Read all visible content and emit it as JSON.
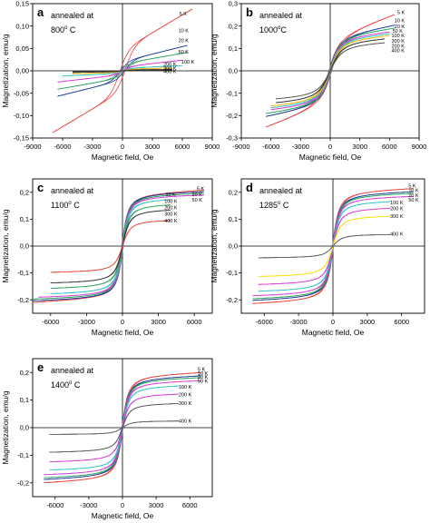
{
  "chart_data": [
    {
      "type": "line",
      "panel_label": "a",
      "annotation": [
        "annealed at",
        "800",
        "o",
        " C"
      ],
      "xlabel": "Magnetic field, Oe",
      "ylabel": "Magnetization, emu/g",
      "xlim": [
        -9000,
        9000
      ],
      "ylim": [
        -0.15,
        0.15
      ],
      "xticks": [
        -9000,
        -6000,
        -3000,
        0,
        3000,
        6000,
        9000
      ],
      "xtick_labels": [
        "-9000",
        "-6000",
        "-3000",
        "0",
        "3000",
        "6000",
        "9000"
      ],
      "yticks": [
        -0.15,
        -0.1,
        -0.05,
        0.0,
        0.05,
        0.1,
        0.15
      ],
      "ytick_labels": [
        "-0,15",
        "-0,10",
        "-0,05",
        "0,00",
        "0,05",
        "0,10",
        "0,15"
      ],
      "x_range": [
        -7000,
        7000
      ],
      "curve_model": "linear",
      "series": [
        {
          "name": "5 K",
          "ms": 0.13,
          "hc": 300,
          "slope": 1.32e-05,
          "xmin": -7000,
          "xmax": 7000,
          "color": "#e8413c"
        },
        {
          "name": "10 K",
          "ms": 0.06,
          "hc": 250,
          "slope": 5.5e-06,
          "xmin": -6500,
          "xmax": 6500,
          "color": "#1f3a93"
        },
        {
          "name": "20 K",
          "ms": 0.045,
          "hc": 200,
          "slope": 3.9e-06,
          "xmin": -6500,
          "xmax": 6500,
          "color": "#2ca25f"
        },
        {
          "name": "50 K",
          "ms": 0.025,
          "hc": 150,
          "slope": 2.5e-06,
          "xmin": -6500,
          "xmax": 6000,
          "color": "#d53ad5"
        },
        {
          "name": "100 K",
          "ms": 0.016,
          "hc": 100,
          "slope": 1e-06,
          "xmin": -6000,
          "xmax": 6000,
          "color": "#2ec4c4"
        },
        {
          "name": "200 K",
          "ms": 0.01,
          "hc": 60,
          "slope": 6e-07,
          "xmin": -5000,
          "xmax": 5000,
          "color": "#f5b800"
        },
        {
          "name": "300 K",
          "ms": 0.006,
          "hc": 40,
          "slope": 3e-07,
          "xmin": -5000,
          "xmax": 5000,
          "color": "#444444"
        },
        {
          "name": "400 K",
          "ms": 0.003,
          "hc": 20,
          "slope": 1e-07,
          "xmin": -5000,
          "xmax": 5000,
          "color": "#333333"
        }
      ],
      "legend_labels": [
        {
          "text": "5 K",
          "x": 5700,
          "y": 0.128
        },
        {
          "text": "10 K",
          "x": 5600,
          "y": 0.09
        },
        {
          "text": "20 K",
          "x": 5600,
          "y": 0.068
        },
        {
          "text": "50 K",
          "x": 5600,
          "y": 0.043
        },
        {
          "text": "100 K",
          "x": 5900,
          "y": 0.02
        },
        {
          "text": "200 K",
          "x": 4100,
          "y": 0.015
        },
        {
          "text": "300 K",
          "x": 4100,
          "y": 0.006
        },
        {
          "text": "400 K",
          "x": 4100,
          "y": -0.001
        }
      ]
    },
    {
      "type": "line",
      "panel_label": "b",
      "annotation": [
        "annealed at",
        "1000",
        "o",
        "C"
      ],
      "xlabel": "Magnetic field, Oe",
      "ylabel": "Magnetization, emu/g",
      "xlim": [
        -9000,
        9000
      ],
      "ylim": [
        -0.3,
        0.3
      ],
      "xticks": [
        -9000,
        -6000,
        -3000,
        0,
        3000,
        6000,
        9000
      ],
      "xtick_labels": [
        "-9000",
        "-6000",
        "-3000",
        "0",
        "3000",
        "6000",
        "9000"
      ],
      "yticks": [
        -0.3,
        -0.2,
        -0.1,
        0.0,
        0.1,
        0.2,
        0.3
      ],
      "ytick_labels": [
        "-0,3",
        "-0,2",
        "-0,1",
        "0,0",
        "0,1",
        "0,2",
        "0,3"
      ],
      "curve_model": "langevin",
      "series": [
        {
          "name": "5 K",
          "ms": 0.16,
          "a": 400,
          "hc": 150,
          "slope": 1.55e-05,
          "xmin": -6500,
          "xmax": 6500,
          "color": "#e8413c"
        },
        {
          "name": "10 K",
          "ms": 0.165,
          "a": 400,
          "hc": 130,
          "slope": 7.5e-06,
          "xmin": -6500,
          "xmax": 6500,
          "color": "#1f3a93"
        },
        {
          "name": "20 K",
          "ms": 0.165,
          "a": 400,
          "hc": 110,
          "slope": 5.5e-06,
          "xmin": -6500,
          "xmax": 6500,
          "color": "#2ca25f"
        },
        {
          "name": "50 K",
          "ms": 0.16,
          "a": 400,
          "hc": 90,
          "slope": 4e-06,
          "xmin": -6000,
          "xmax": 6000,
          "color": "#d53ad5"
        },
        {
          "name": "100 K",
          "ms": 0.155,
          "a": 420,
          "hc": 70,
          "slope": 3.5e-06,
          "xmin": -6000,
          "xmax": 6000,
          "color": "#2ec4c4"
        },
        {
          "name": "200 K",
          "ms": 0.15,
          "a": 440,
          "hc": 50,
          "slope": 3e-06,
          "xmin": -6000,
          "xmax": 6000,
          "color": "#f5b800"
        },
        {
          "name": "300 K",
          "ms": 0.14,
          "a": 460,
          "hc": 30,
          "slope": 2.5e-06,
          "xmin": -5500,
          "xmax": 5500,
          "color": "#333333"
        },
        {
          "name": "400 K",
          "ms": 0.125,
          "a": 480,
          "hc": 20,
          "slope": 2e-06,
          "xmin": -5500,
          "xmax": 5500,
          "color": "#555555"
        }
      ],
      "legend_labels": [
        {
          "text": "5 K",
          "x": 6800,
          "y": 0.262
        },
        {
          "text": "10 K",
          "x": 6500,
          "y": 0.224
        },
        {
          "text": "20 K",
          "x": 6500,
          "y": 0.198
        },
        {
          "text": "50 K",
          "x": 6300,
          "y": 0.178
        },
        {
          "text": "100 K",
          "x": 6200,
          "y": 0.158
        },
        {
          "text": "300 K",
          "x": 6200,
          "y": 0.134
        },
        {
          "text": "200 K",
          "x": 6200,
          "y": 0.112
        },
        {
          "text": "400 K",
          "x": 6200,
          "y": 0.092
        }
      ]
    },
    {
      "type": "line",
      "panel_label": "c",
      "annotation": [
        "annealed at",
        "1100",
        "o",
        " C"
      ],
      "xlabel": "Magnetic field, Oe",
      "ylabel": "Magnetization, emu/g",
      "xlim": [
        -7500,
        7500
      ],
      "ylim": [
        -0.25,
        0.25
      ],
      "xticks": [
        -6000,
        -3000,
        0,
        3000,
        6000
      ],
      "xtick_labels": [
        "-6000",
        "-3000",
        "0",
        "3000",
        "6000"
      ],
      "yticks": [
        -0.2,
        -0.1,
        0.0,
        0.1,
        0.2
      ],
      "ytick_labels": [
        "-0,2",
        "-0,1",
        "0,0",
        "0,1",
        "0,2"
      ],
      "curve_model": "langevin",
      "series": [
        {
          "name": "5 K",
          "ms": 0.2,
          "a": 200,
          "hc": 60,
          "slope": 2e-06,
          "xmin": -7500,
          "xmax": 6800,
          "color": "#e8413c"
        },
        {
          "name": "10 K",
          "ms": 0.2,
          "a": 200,
          "hc": 55,
          "slope": 1.2e-06,
          "xmin": -7500,
          "xmax": 6800,
          "color": "#1f3a93"
        },
        {
          "name": "20 K",
          "ms": 0.195,
          "a": 200,
          "hc": 50,
          "slope": 1e-06,
          "xmin": -7500,
          "xmax": 6800,
          "color": "#2ca25f"
        },
        {
          "name": "50 K",
          "ms": 0.19,
          "a": 200,
          "hc": 45,
          "slope": 8e-07,
          "xmin": -7000,
          "xmax": 6800,
          "color": "#d53ad5"
        },
        {
          "name": "100 K",
          "ms": 0.18,
          "a": 210,
          "hc": 40,
          "slope": 6e-07,
          "xmin": -6000,
          "xmax": 4000,
          "color": "#2ec4c4"
        },
        {
          "name": "200 K",
          "ms": 0.16,
          "a": 220,
          "hc": 30,
          "slope": 5e-07,
          "xmin": -6000,
          "xmax": 4000,
          "color": "#2ca25f"
        },
        {
          "name": "300 K",
          "ms": 0.14,
          "a": 230,
          "hc": 20,
          "slope": 4e-07,
          "xmin": -6000,
          "xmax": 4000,
          "color": "#333333"
        },
        {
          "name": "400 K",
          "ms": 0.1,
          "a": 250,
          "hc": 10,
          "slope": 3e-07,
          "xmin": -6000,
          "xmax": 4000,
          "color": "#e8413c"
        }
      ],
      "legend_labels": [
        {
          "text": "5 K",
          "x": 6200,
          "y": 0.215
        },
        {
          "text": "10 K",
          "x": 3600,
          "y": 0.192
        },
        {
          "text": "20 K",
          "x": 5800,
          "y": 0.193
        },
        {
          "text": "100 K",
          "x": 3500,
          "y": 0.168
        },
        {
          "text": "50 K",
          "x": 5800,
          "y": 0.172
        },
        {
          "text": "200 K",
          "x": 3500,
          "y": 0.144
        },
        {
          "text": "300 K",
          "x": 3500,
          "y": 0.12
        },
        {
          "text": "400 K",
          "x": 3500,
          "y": 0.095
        }
      ]
    },
    {
      "type": "line",
      "panel_label": "d",
      "annotation": [
        "annealed at",
        "1285",
        "o",
        " C"
      ],
      "xlabel": "Magnetic field, Oe",
      "ylabel": "Magnetization, emu/g",
      "xlim": [
        -8000,
        8000
      ],
      "ylim": [
        -0.25,
        0.25
      ],
      "xticks": [
        -6000,
        -3000,
        0,
        3000,
        6000
      ],
      "xtick_labels": [
        "-6000",
        "-3000",
        "0",
        "3000",
        "6000"
      ],
      "yticks": [
        -0.2,
        -0.1,
        0.0,
        0.1,
        0.2
      ],
      "ytick_labels": [
        "-0,2",
        "-0,1",
        "0,0",
        "0,1",
        "0,2"
      ],
      "curve_model": "langevin",
      "series": [
        {
          "name": "5 K",
          "ms": 0.21,
          "a": 220,
          "hc": 50,
          "slope": 1.5e-06,
          "xmin": -7000,
          "xmax": 7000,
          "color": "#e8413c"
        },
        {
          "name": "10 K",
          "ms": 0.2,
          "a": 220,
          "hc": 45,
          "slope": 1.2e-06,
          "xmin": -7000,
          "xmax": 7000,
          "color": "#1f3a93"
        },
        {
          "name": "20 K",
          "ms": 0.195,
          "a": 220,
          "hc": 40,
          "slope": 1e-06,
          "xmin": -7000,
          "xmax": 7000,
          "color": "#2ca25f"
        },
        {
          "name": "50 K",
          "ms": 0.185,
          "a": 220,
          "hc": 35,
          "slope": 8e-07,
          "xmin": -7000,
          "xmax": 7000,
          "color": "#d53ad5"
        },
        {
          "name": "100 K",
          "ms": 0.17,
          "a": 230,
          "hc": 30,
          "slope": 6e-07,
          "xmin": -6500,
          "xmax": 5000,
          "color": "#2ec4c4"
        },
        {
          "name": "200 K",
          "ms": 0.145,
          "a": 240,
          "hc": 20,
          "slope": 5e-07,
          "xmin": -6500,
          "xmax": 5000,
          "color": "#d53ad5"
        },
        {
          "name": "300 K",
          "ms": 0.115,
          "a": 260,
          "hc": 15,
          "slope": 4e-07,
          "xmin": -6500,
          "xmax": 5000,
          "color": "#f5e000"
        },
        {
          "name": "400 K",
          "ms": 0.045,
          "a": 300,
          "hc": 5,
          "slope": 1e-07,
          "xmin": -6500,
          "xmax": 5000,
          "color": "#555555"
        }
      ],
      "legend_labels": [
        {
          "text": "5 K",
          "x": 6600,
          "y": 0.225
        },
        {
          "text": "10 K",
          "x": 6600,
          "y": 0.208
        },
        {
          "text": "20 K",
          "x": 6600,
          "y": 0.19
        },
        {
          "text": "50 K",
          "x": 6600,
          "y": 0.172
        },
        {
          "text": "100 K",
          "x": 5000,
          "y": 0.163
        },
        {
          "text": "200 K",
          "x": 5000,
          "y": 0.14
        },
        {
          "text": "300 K",
          "x": 5000,
          "y": 0.112
        },
        {
          "text": "400 K",
          "x": 5000,
          "y": 0.045
        }
      ]
    },
    {
      "type": "line",
      "panel_label": "e",
      "annotation": [
        "annealed at",
        "1400",
        "o",
        " C"
      ],
      "xlabel": "Magnetic field, Oe",
      "ylabel": "Magnetization, emu/g",
      "xlim": [
        -8000,
        8000
      ],
      "ylim": [
        -0.25,
        0.25
      ],
      "xticks": [
        -6000,
        -3000,
        0,
        3000,
        6000
      ],
      "xtick_labels": [
        "-6000",
        "-3000",
        "0",
        "3000",
        "6000"
      ],
      "yticks": [
        -0.2,
        -0.1,
        0.0,
        0.1,
        0.2
      ],
      "ytick_labels": [
        "-0,2",
        "-0,1",
        "0,0",
        "0,1",
        "0,2"
      ],
      "curve_model": "langevin",
      "series": [
        {
          "name": "5 K",
          "ms": 0.195,
          "a": 220,
          "hc": 50,
          "slope": 1.5e-06,
          "xmin": -7000,
          "xmax": 7000,
          "color": "#e8413c"
        },
        {
          "name": "10 K",
          "ms": 0.185,
          "a": 220,
          "hc": 45,
          "slope": 1.2e-06,
          "xmin": -7000,
          "xmax": 7000,
          "color": "#1f3a93"
        },
        {
          "name": "20 K",
          "ms": 0.18,
          "a": 220,
          "hc": 40,
          "slope": 1e-06,
          "xmin": -7000,
          "xmax": 7000,
          "color": "#2ca25f"
        },
        {
          "name": "50 K",
          "ms": 0.17,
          "a": 220,
          "hc": 35,
          "slope": 8e-07,
          "xmin": -7000,
          "xmax": 7000,
          "color": "#d53ad5"
        },
        {
          "name": "100 K",
          "ms": 0.155,
          "a": 230,
          "hc": 30,
          "slope": 6e-07,
          "xmin": -6500,
          "xmax": 5000,
          "color": "#2ec4c4"
        },
        {
          "name": "200 K",
          "ms": 0.125,
          "a": 240,
          "hc": 20,
          "slope": 5e-07,
          "xmin": -6500,
          "xmax": 5000,
          "color": "#d53ad5"
        },
        {
          "name": "300 K",
          "ms": 0.09,
          "a": 260,
          "hc": 15,
          "slope": 4e-07,
          "xmin": -6500,
          "xmax": 5000,
          "color": "#555555"
        },
        {
          "name": "400 K",
          "ms": 0.025,
          "a": 300,
          "hc": 5,
          "slope": 1e-07,
          "xmin": -6500,
          "xmax": 5000,
          "color": "#555555"
        }
      ],
      "legend_labels": [
        {
          "text": "5 K",
          "x": 6700,
          "y": 0.212
        },
        {
          "text": "10 K",
          "x": 6700,
          "y": 0.198
        },
        {
          "text": "20 K",
          "x": 6700,
          "y": 0.184
        },
        {
          "text": "50 K",
          "x": 6700,
          "y": 0.17
        },
        {
          "text": "100 K",
          "x": 5000,
          "y": 0.148
        },
        {
          "text": "200 K",
          "x": 5000,
          "y": 0.12
        },
        {
          "text": "300 K",
          "x": 5000,
          "y": 0.088
        },
        {
          "text": "400 K",
          "x": 5000,
          "y": 0.025
        }
      ]
    }
  ]
}
